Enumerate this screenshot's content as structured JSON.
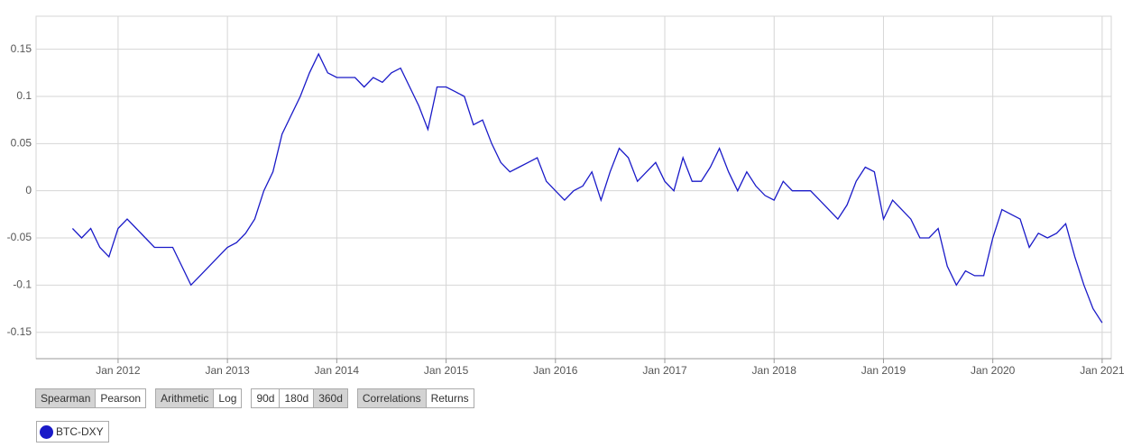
{
  "chart_data": {
    "type": "line",
    "x": [
      "2011-08",
      "2011-09",
      "2011-10",
      "2011-11",
      "2011-12",
      "2012-01",
      "2012-02",
      "2012-03",
      "2012-04",
      "2012-05",
      "2012-06",
      "2012-07",
      "2012-08",
      "2012-09",
      "2012-10",
      "2012-11",
      "2012-12",
      "2013-01",
      "2013-02",
      "2013-03",
      "2013-04",
      "2013-05",
      "2013-06",
      "2013-07",
      "2013-08",
      "2013-09",
      "2013-10",
      "2013-11",
      "2013-12",
      "2014-01",
      "2014-02",
      "2014-03",
      "2014-04",
      "2014-05",
      "2014-06",
      "2014-07",
      "2014-08",
      "2014-09",
      "2014-10",
      "2014-11",
      "2014-12",
      "2015-01",
      "2015-02",
      "2015-03",
      "2015-04",
      "2015-05",
      "2015-06",
      "2015-07",
      "2015-08",
      "2015-09",
      "2015-10",
      "2015-11",
      "2015-12",
      "2016-01",
      "2016-02",
      "2016-03",
      "2016-04",
      "2016-05",
      "2016-06",
      "2016-07",
      "2016-08",
      "2016-09",
      "2016-10",
      "2016-11",
      "2016-12",
      "2017-01",
      "2017-02",
      "2017-03",
      "2017-04",
      "2017-05",
      "2017-06",
      "2017-07",
      "2017-08",
      "2017-09",
      "2017-10",
      "2017-11",
      "2017-12",
      "2018-01",
      "2018-02",
      "2018-03",
      "2018-04",
      "2018-05",
      "2018-06",
      "2018-07",
      "2018-08",
      "2018-09",
      "2018-10",
      "2018-11",
      "2018-12",
      "2019-01",
      "2019-02",
      "2019-03",
      "2019-04",
      "2019-05",
      "2019-06",
      "2019-07",
      "2019-08",
      "2019-09",
      "2019-10",
      "2019-11",
      "2019-12",
      "2020-01",
      "2020-02",
      "2020-03",
      "2020-04",
      "2020-05",
      "2020-06",
      "2020-07",
      "2020-08",
      "2020-09",
      "2020-10",
      "2020-11",
      "2020-12",
      "2021-01"
    ],
    "series": [
      {
        "name": "BTC-DXY",
        "color": "#1a1ac8",
        "values": [
          -0.04,
          -0.05,
          -0.04,
          -0.06,
          -0.07,
          -0.04,
          -0.03,
          -0.04,
          -0.05,
          -0.06,
          -0.06,
          -0.06,
          -0.08,
          -0.1,
          -0.09,
          -0.08,
          -0.07,
          -0.06,
          -0.055,
          -0.045,
          -0.03,
          0.0,
          0.02,
          0.06,
          0.08,
          0.1,
          0.125,
          0.145,
          0.125,
          0.12,
          0.12,
          0.12,
          0.11,
          0.12,
          0.115,
          0.125,
          0.13,
          0.11,
          0.09,
          0.065,
          0.11,
          0.11,
          0.105,
          0.1,
          0.07,
          0.075,
          0.05,
          0.03,
          0.02,
          0.025,
          0.03,
          0.035,
          0.01,
          0.0,
          -0.01,
          0.0,
          0.005,
          0.02,
          -0.01,
          0.02,
          0.045,
          0.035,
          0.01,
          0.02,
          0.03,
          0.01,
          0.0,
          0.035,
          0.01,
          0.01,
          0.025,
          0.045,
          0.02,
          0.0,
          0.02,
          0.005,
          -0.005,
          -0.01,
          0.01,
          0.0,
          0.0,
          0.0,
          -0.01,
          -0.02,
          -0.03,
          -0.015,
          0.01,
          0.025,
          0.02,
          -0.03,
          -0.01,
          -0.02,
          -0.03,
          -0.05,
          -0.05,
          -0.04,
          -0.08,
          -0.1,
          -0.085,
          -0.09,
          -0.09,
          -0.05,
          -0.02,
          -0.025,
          -0.03,
          -0.06,
          -0.045,
          -0.05,
          -0.045,
          -0.035,
          -0.07,
          -0.1,
          -0.125,
          -0.14
        ]
      }
    ],
    "xlim": [
      "2011-04",
      "2021-02"
    ],
    "xticks": [
      {
        "value": "2012-01",
        "label": "Jan 2012"
      },
      {
        "value": "2013-01",
        "label": "Jan 2013"
      },
      {
        "value": "2014-01",
        "label": "Jan 2014"
      },
      {
        "value": "2015-01",
        "label": "Jan 2015"
      },
      {
        "value": "2016-01",
        "label": "Jan 2016"
      },
      {
        "value": "2017-01",
        "label": "Jan 2017"
      },
      {
        "value": "2018-01",
        "label": "Jan 2018"
      },
      {
        "value": "2019-01",
        "label": "Jan 2019"
      },
      {
        "value": "2020-01",
        "label": "Jan 2020"
      },
      {
        "value": "2021-01",
        "label": "Jan 2021"
      }
    ],
    "ylim": [
      -0.178,
      0.185
    ],
    "yticks": [
      -0.15,
      -0.1,
      -0.05,
      0,
      0.05,
      0.1,
      0.15
    ],
    "grid": true
  },
  "controls": [
    [
      {
        "label": "Spearman",
        "active": true
      },
      {
        "label": "Pearson",
        "active": false
      }
    ],
    [
      {
        "label": "Arithmetic",
        "active": true
      },
      {
        "label": "Log",
        "active": false
      }
    ],
    [
      {
        "label": "90d",
        "active": false
      },
      {
        "label": "180d",
        "active": false
      },
      {
        "label": "360d",
        "active": true
      }
    ],
    [
      {
        "label": "Correlations",
        "active": true
      },
      {
        "label": "Returns",
        "active": false
      }
    ]
  ]
}
